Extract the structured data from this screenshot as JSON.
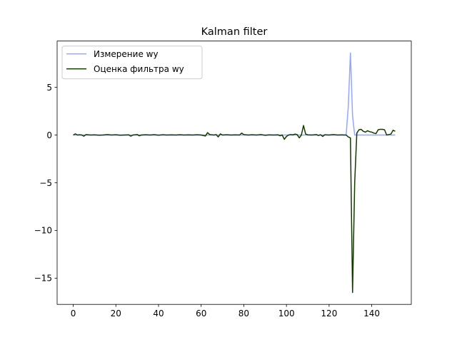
{
  "chart_data": {
    "type": "line",
    "title": "Kalman filter",
    "xlabel": "",
    "ylabel": "",
    "xlim": [
      -7.55,
      158.55
    ],
    "ylim": [
      -17.75,
      9.85
    ],
    "xticks": [
      0,
      20,
      40,
      60,
      80,
      100,
      120,
      140
    ],
    "xtick_labels": [
      "0",
      "20",
      "40",
      "60",
      "80",
      "100",
      "120",
      "140"
    ],
    "yticks": [
      5,
      0,
      -5,
      -10,
      -15
    ],
    "ytick_labels": [
      "5",
      "0",
      "−5",
      "−10",
      "−15"
    ],
    "grid": false,
    "legend": "upper left",
    "series": [
      {
        "name": "Измерение wy",
        "color": "#94a6ff",
        "points": [
          [
            0,
            0.0
          ],
          [
            125,
            0.0
          ],
          [
            128,
            0.0
          ],
          [
            129,
            3.0
          ],
          [
            130,
            8.6
          ],
          [
            131,
            2.0
          ],
          [
            132,
            0.0
          ],
          [
            151,
            0.0
          ]
        ]
      },
      {
        "name": "Оценка фильтра wy",
        "color": "#133a00",
        "points": [
          [
            0,
            0.0
          ],
          [
            1,
            0.12
          ],
          [
            2,
            0.0
          ],
          [
            3,
            0.03
          ],
          [
            4,
            0.0
          ],
          [
            5,
            -0.12
          ],
          [
            6,
            0.05
          ],
          [
            8,
            0.0
          ],
          [
            10,
            0.02
          ],
          [
            12,
            -0.02
          ],
          [
            14,
            0.0
          ],
          [
            16,
            0.05
          ],
          [
            18,
            0.0
          ],
          [
            20,
            0.03
          ],
          [
            22,
            -0.02
          ],
          [
            24,
            0.0
          ],
          [
            26,
            0.02
          ],
          [
            27,
            -0.12
          ],
          [
            28,
            0.0
          ],
          [
            30,
            0.05
          ],
          [
            31,
            -0.08
          ],
          [
            32,
            0.0
          ],
          [
            34,
            0.03
          ],
          [
            36,
            0.0
          ],
          [
            38,
            0.04
          ],
          [
            40,
            -0.02
          ],
          [
            42,
            0.03
          ],
          [
            44,
            0.0
          ],
          [
            46,
            0.02
          ],
          [
            48,
            0.0
          ],
          [
            50,
            0.03
          ],
          [
            52,
            0.0
          ],
          [
            54,
            0.02
          ],
          [
            56,
            0.0
          ],
          [
            58,
            0.03
          ],
          [
            60,
            0.0
          ],
          [
            62,
            -0.1
          ],
          [
            63,
            0.25
          ],
          [
            64,
            0.05
          ],
          [
            66,
            0.0
          ],
          [
            67,
            0.05
          ],
          [
            68,
            -0.2
          ],
          [
            69,
            0.12
          ],
          [
            70,
            0.0
          ],
          [
            72,
            0.03
          ],
          [
            74,
            0.0
          ],
          [
            76,
            0.02
          ],
          [
            78,
            0.0
          ],
          [
            79,
            0.2
          ],
          [
            80,
            0.05
          ],
          [
            82,
            0.0
          ],
          [
            84,
            0.03
          ],
          [
            86,
            0.0
          ],
          [
            88,
            0.05
          ],
          [
            90,
            -0.03
          ],
          [
            92,
            0.02
          ],
          [
            94,
            0.0
          ],
          [
            96,
            0.02
          ],
          [
            97,
            -0.08
          ],
          [
            98,
            0.0
          ],
          [
            99,
            -0.45
          ],
          [
            100,
            -0.15
          ],
          [
            101,
            0.0
          ],
          [
            102,
            0.05
          ],
          [
            103,
            0.02
          ],
          [
            104,
            0.1
          ],
          [
            105,
            0.05
          ],
          [
            106,
            -0.3
          ],
          [
            107,
            0.0
          ],
          [
            108,
            1.0
          ],
          [
            109,
            0.1
          ],
          [
            110,
            0.02
          ],
          [
            112,
            0.0
          ],
          [
            114,
            0.05
          ],
          [
            115,
            -0.05
          ],
          [
            116,
            0.03
          ],
          [
            117,
            -0.15
          ],
          [
            118,
            0.03
          ],
          [
            120,
            0.0
          ],
          [
            122,
            0.05
          ],
          [
            124,
            0.0
          ],
          [
            126,
            0.02
          ],
          [
            127,
            0.0
          ],
          [
            128,
            0.0
          ],
          [
            129,
            -0.2
          ],
          [
            130,
            -0.3
          ],
          [
            131,
            -16.5
          ],
          [
            132,
            -5.0
          ],
          [
            133,
            0.2
          ],
          [
            134,
            0.55
          ],
          [
            135,
            0.6
          ],
          [
            136,
            0.4
          ],
          [
            137,
            0.3
          ],
          [
            138,
            0.45
          ],
          [
            139,
            0.35
          ],
          [
            140,
            0.3
          ],
          [
            141,
            0.2
          ],
          [
            142,
            0.15
          ],
          [
            143,
            0.55
          ],
          [
            144,
            0.6
          ],
          [
            145,
            0.6
          ],
          [
            146,
            0.55
          ],
          [
            147,
            0.0
          ],
          [
            148,
            0.05
          ],
          [
            149,
            0.1
          ],
          [
            150,
            0.5
          ],
          [
            151,
            0.4
          ]
        ]
      }
    ]
  }
}
